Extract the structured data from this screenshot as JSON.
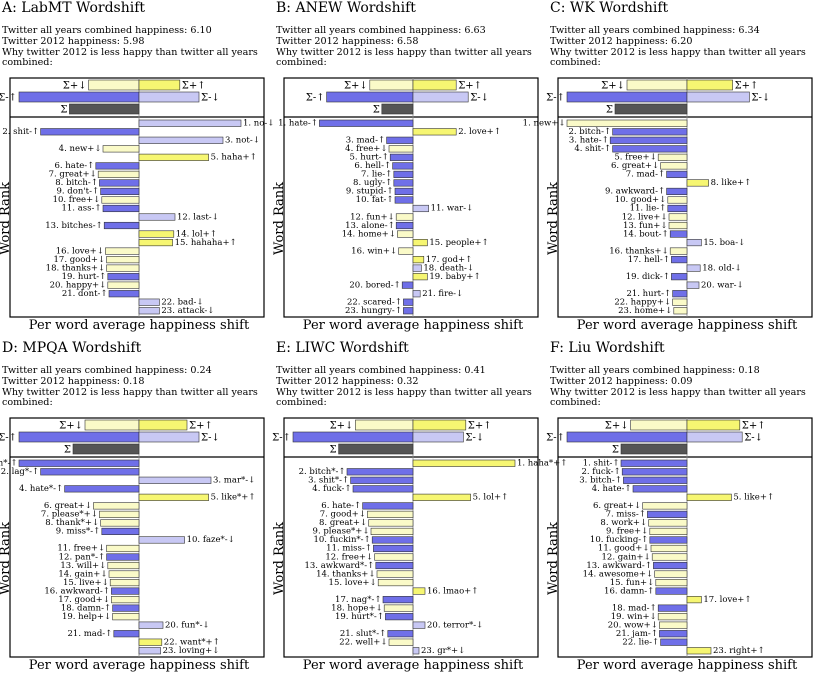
{
  "chart_data": [
    {
      "type": "bar",
      "panel_title": "A: LabMT Wordshift",
      "info": [
        "Twitter all years combined happiness: 6.10",
        "Twitter 2012 happiness: 5.98",
        "Why twitter 2012 is less happy than twitter all years combined:"
      ],
      "ylabel": "Word Rank",
      "xlabel": "Per word average happiness shift",
      "summary": {
        "labels": [
          "Σ+↓",
          "Σ+↑",
          "Σ-↑",
          "Σ-↓",
          "Σ"
        ],
        "values": {
          "pos_down": -0.42,
          "pos_up": 0.34,
          "neg_up": -1.0,
          "neg_down": 0.5,
          "total": -0.58
        }
      },
      "words": [
        {
          "label": "1. no-↓",
          "value": 0.85,
          "kind": "neg_down"
        },
        {
          "label": "2. shit-↑",
          "value": -0.82,
          "kind": "neg_up"
        },
        {
          "label": "3. not-↓",
          "value": 0.7,
          "kind": "neg_down"
        },
        {
          "label": "4. new+↓",
          "value": -0.3,
          "kind": "pos_down"
        },
        {
          "label": "5. haha+↑",
          "value": 0.58,
          "kind": "pos_up"
        },
        {
          "label": "6. hate-↑",
          "value": -0.36,
          "kind": "neg_up"
        },
        {
          "label": "7. great+↓",
          "value": -0.34,
          "kind": "pos_down"
        },
        {
          "label": "8. bitch-↑",
          "value": -0.33,
          "kind": "neg_up"
        },
        {
          "label": "9. don't-↑",
          "value": -0.32,
          "kind": "neg_up"
        },
        {
          "label": "10. free+↓",
          "value": -0.31,
          "kind": "pos_down"
        },
        {
          "label": "11. ass-↑",
          "value": -0.3,
          "kind": "neg_up"
        },
        {
          "label": "12. last-↓",
          "value": 0.3,
          "kind": "neg_down"
        },
        {
          "label": "13. bitches-↑",
          "value": -0.29,
          "kind": "neg_up"
        },
        {
          "label": "14. lol+↑",
          "value": 0.29,
          "kind": "pos_up"
        },
        {
          "label": "15. hahaha+↑",
          "value": 0.28,
          "kind": "pos_up"
        },
        {
          "label": "16. love+↓",
          "value": -0.28,
          "kind": "pos_down"
        },
        {
          "label": "17. good+↓",
          "value": -0.27,
          "kind": "pos_down"
        },
        {
          "label": "18. thanks+↓",
          "value": -0.27,
          "kind": "pos_down"
        },
        {
          "label": "19. hurt-↑",
          "value": -0.26,
          "kind": "neg_up"
        },
        {
          "label": "20. happy+↓",
          "value": -0.26,
          "kind": "pos_down"
        },
        {
          "label": "21. dont-↑",
          "value": -0.25,
          "kind": "neg_up"
        },
        {
          "label": "22. bad-↓",
          "value": 0.17,
          "kind": "neg_down"
        },
        {
          "label": "23. attack-↓",
          "value": 0.17,
          "kind": "neg_down"
        }
      ]
    },
    {
      "type": "bar",
      "panel_title": "B: ANEW Wordshift",
      "info": [
        "Twitter all years combined happiness: 6.63",
        "Twitter 2012 happiness: 6.58",
        "Why twitter 2012 is less happy than twitter all years combined:"
      ],
      "ylabel": "Word Rank",
      "xlabel": "Per word average happiness shift",
      "summary": {
        "labels": [
          "Σ+↓",
          "Σ+↑",
          "Σ-↑",
          "Σ-↓",
          "Σ"
        ],
        "values": {
          "pos_down": -0.36,
          "pos_up": 0.36,
          "neg_up": -0.72,
          "neg_down": 0.46,
          "total": -0.26
        }
      },
      "words": [
        {
          "label": "1. hate-↑",
          "value": -0.78,
          "kind": "neg_up"
        },
        {
          "label": "2. love+↑",
          "value": 0.36,
          "kind": "pos_up"
        },
        {
          "label": "3. mad-↑",
          "value": -0.22,
          "kind": "neg_up"
        },
        {
          "label": "4. free+↓",
          "value": -0.2,
          "kind": "pos_down"
        },
        {
          "label": "5. hurt-↑",
          "value": -0.19,
          "kind": "neg_up"
        },
        {
          "label": "6. hell-↑",
          "value": -0.17,
          "kind": "neg_up"
        },
        {
          "label": "7. lie-↑",
          "value": -0.16,
          "kind": "neg_up"
        },
        {
          "label": "8. ugly-↑",
          "value": -0.16,
          "kind": "neg_up"
        },
        {
          "label": "9. stupid-↑",
          "value": -0.15,
          "kind": "neg_up"
        },
        {
          "label": "10. fat-↑",
          "value": -0.15,
          "kind": "neg_up"
        },
        {
          "label": "11. war-↓",
          "value": 0.13,
          "kind": "neg_down"
        },
        {
          "label": "12. fun+↓",
          "value": -0.14,
          "kind": "pos_down"
        },
        {
          "label": "13. alone-↑",
          "value": -0.14,
          "kind": "neg_up"
        },
        {
          "label": "14. home+↓",
          "value": -0.13,
          "kind": "pos_down"
        },
        {
          "label": "15. people+↑",
          "value": 0.12,
          "kind": "pos_up"
        },
        {
          "label": "16. win+↓",
          "value": -0.12,
          "kind": "pos_down"
        },
        {
          "label": "17. god+↑",
          "value": 0.09,
          "kind": "pos_up"
        },
        {
          "label": "18. death-↓",
          "value": 0.07,
          "kind": "neg_down"
        },
        {
          "label": "19. baby+↑",
          "value": 0.12,
          "kind": "pos_up"
        },
        {
          "label": "20. bored-↑",
          "value": -0.09,
          "kind": "neg_up"
        },
        {
          "label": "21. fire-↓",
          "value": 0.06,
          "kind": "neg_down"
        },
        {
          "label": "22. scared-↑",
          "value": -0.08,
          "kind": "neg_up"
        },
        {
          "label": "23. hungry-↑",
          "value": -0.08,
          "kind": "neg_up"
        }
      ]
    },
    {
      "type": "bar",
      "panel_title": "C: WK Wordshift",
      "info": [
        "Twitter all years combined happiness: 6.34",
        "Twitter 2012 happiness: 6.20",
        "Why twitter 2012 is less happy than twitter all years combined:"
      ],
      "ylabel": "Word Rank",
      "xlabel": "Per word average happiness shift",
      "summary": {
        "labels": [
          "Σ+↓",
          "Σ+↑",
          "Σ-↑",
          "Σ-↓",
          "Σ"
        ],
        "values": {
          "pos_down": -0.5,
          "pos_up": 0.38,
          "neg_up": -1.0,
          "neg_down": 0.52,
          "total": -0.6
        }
      },
      "words": [
        {
          "label": "1. new+↓",
          "value": -1.0,
          "kind": "pos_down"
        },
        {
          "label": "2. bitch-↑",
          "value": -0.62,
          "kind": "neg_up"
        },
        {
          "label": "3. hate-↑",
          "value": -0.64,
          "kind": "neg_up"
        },
        {
          "label": "4. shit-↑",
          "value": -0.62,
          "kind": "neg_up"
        },
        {
          "label": "5. free+↓",
          "value": -0.24,
          "kind": "pos_down"
        },
        {
          "label": "6. great+↓",
          "value": -0.22,
          "kind": "pos_down"
        },
        {
          "label": "7. mad-↑",
          "value": -0.17,
          "kind": "neg_up"
        },
        {
          "label": "8. like+↑",
          "value": 0.18,
          "kind": "pos_up"
        },
        {
          "label": "9. awkward-↑",
          "value": -0.17,
          "kind": "neg_up"
        },
        {
          "label": "10. good+↓",
          "value": -0.16,
          "kind": "pos_down"
        },
        {
          "label": "11. lie-↑",
          "value": -0.16,
          "kind": "neg_up"
        },
        {
          "label": "12. live+↓",
          "value": -0.15,
          "kind": "pos_down"
        },
        {
          "label": "13. fun+↓",
          "value": -0.15,
          "kind": "pos_down"
        },
        {
          "label": "14. bout-↑",
          "value": -0.14,
          "kind": "neg_up"
        },
        {
          "label": "15. boa-↓",
          "value": 0.12,
          "kind": "neg_down"
        },
        {
          "label": "16. thanks+↓",
          "value": -0.14,
          "kind": "pos_down"
        },
        {
          "label": "17. hell-↑",
          "value": -0.13,
          "kind": "neg_up"
        },
        {
          "label": "18. old-↓",
          "value": 0.11,
          "kind": "neg_down"
        },
        {
          "label": "19. dick-↑",
          "value": -0.13,
          "kind": "neg_up"
        },
        {
          "label": "20. war-↓",
          "value": 0.1,
          "kind": "neg_down"
        },
        {
          "label": "21. hurt-↑",
          "value": -0.12,
          "kind": "neg_up"
        },
        {
          "label": "22. happy+↓",
          "value": -0.12,
          "kind": "pos_down"
        },
        {
          "label": "23. home+↓",
          "value": -0.11,
          "kind": "pos_down"
        }
      ]
    },
    {
      "type": "bar",
      "panel_title": "D: MPQA Wordshift",
      "info": [
        "Twitter all years combined happiness: 0.24",
        "Twitter 2012 happiness: 0.18",
        "Why twitter 2012 is less happy than twitter all years combined:"
      ],
      "ylabel": "Word Rank",
      "xlabel": "Per word average happiness shift",
      "summary": {
        "labels": [
          "Σ+↓",
          "Σ+↑",
          "Σ-↑",
          "Σ-↓",
          "Σ"
        ],
        "values": {
          "pos_down": -0.45,
          "pos_up": 0.4,
          "neg_up": -1.0,
          "neg_down": 0.5,
          "total": -0.55
        }
      },
      "words": [
        {
          "label": "1. bitch*-↑",
          "value": -1.0,
          "kind": "neg_up"
        },
        {
          "label": "2. lag*-↑",
          "value": -0.82,
          "kind": "neg_up"
        },
        {
          "label": "3. mar*-↓",
          "value": 0.6,
          "kind": "neg_down"
        },
        {
          "label": "4. hate*-↑",
          "value": -0.62,
          "kind": "neg_up"
        },
        {
          "label": "5. like*+↑",
          "value": 0.58,
          "kind": "pos_up"
        },
        {
          "label": "6. great+↓",
          "value": -0.38,
          "kind": "pos_down"
        },
        {
          "label": "7. please*+↓",
          "value": -0.33,
          "kind": "pos_down"
        },
        {
          "label": "8. thank*+↓",
          "value": -0.32,
          "kind": "pos_down"
        },
        {
          "label": "9. miss*-↑",
          "value": -0.31,
          "kind": "neg_up"
        },
        {
          "label": "10. faze*-↓",
          "value": 0.38,
          "kind": "neg_down"
        },
        {
          "label": "11. free+↓",
          "value": -0.27,
          "kind": "pos_down"
        },
        {
          "label": "12. pan*-↑",
          "value": -0.27,
          "kind": "neg_up"
        },
        {
          "label": "13. will+↓",
          "value": -0.26,
          "kind": "pos_down"
        },
        {
          "label": "14. gain+↓",
          "value": -0.25,
          "kind": "pos_down"
        },
        {
          "label": "15. live+↓",
          "value": -0.24,
          "kind": "pos_down"
        },
        {
          "label": "16. awkward-↑",
          "value": -0.23,
          "kind": "neg_up"
        },
        {
          "label": "17. good+↓",
          "value": -0.23,
          "kind": "pos_down"
        },
        {
          "label": "18. damn-↑",
          "value": -0.22,
          "kind": "neg_up"
        },
        {
          "label": "19. help+↓",
          "value": -0.22,
          "kind": "pos_down"
        },
        {
          "label": "20. fun*-↓",
          "value": 0.2,
          "kind": "neg_down"
        },
        {
          "label": "21. mad-↑",
          "value": -0.21,
          "kind": "neg_up"
        },
        {
          "label": "22. want*+↑",
          "value": 0.19,
          "kind": "pos_up"
        },
        {
          "label": "23. loving+↓",
          "value": 0.18,
          "kind": "neg_down"
        }
      ]
    },
    {
      "type": "bar",
      "panel_title": "E: LIWC Wordshift",
      "info": [
        "Twitter all years combined happiness: 0.41",
        "Twitter 2012 happiness: 0.32",
        "Why twitter 2012 is less happy than twitter all years combined:"
      ],
      "ylabel": "Word Rank",
      "xlabel": "Per word average happiness shift",
      "summary": {
        "labels": [
          "Σ+↓",
          "Σ+↑",
          "Σ-↑",
          "Σ-↓",
          "Σ"
        ],
        "values": {
          "pos_down": -0.48,
          "pos_up": 0.44,
          "neg_up": -1.0,
          "neg_down": 0.42,
          "total": -0.62
        }
      },
      "words": [
        {
          "label": "1. haha*+↑",
          "value": 0.85,
          "kind": "pos_up"
        },
        {
          "label": "2. bitch*-↑",
          "value": -0.55,
          "kind": "neg_up"
        },
        {
          "label": "3. shit*-↑",
          "value": -0.52,
          "kind": "neg_up"
        },
        {
          "label": "4. fuck-↑",
          "value": -0.5,
          "kind": "neg_up"
        },
        {
          "label": "5. lol+↑",
          "value": 0.48,
          "kind": "pos_up"
        },
        {
          "label": "6. hate-↑",
          "value": -0.42,
          "kind": "neg_up"
        },
        {
          "label": "7. good+↓",
          "value": -0.38,
          "kind": "pos_down"
        },
        {
          "label": "8. great+↓",
          "value": -0.37,
          "kind": "pos_down"
        },
        {
          "label": "9. please*+↓",
          "value": -0.35,
          "kind": "pos_down"
        },
        {
          "label": "10. fuckin*-↑",
          "value": -0.34,
          "kind": "neg_up"
        },
        {
          "label": "11. miss-↑",
          "value": -0.33,
          "kind": "neg_up"
        },
        {
          "label": "12. free+↓",
          "value": -0.32,
          "kind": "pos_down"
        },
        {
          "label": "13. awkward*-↑",
          "value": -0.31,
          "kind": "neg_up"
        },
        {
          "label": "14. thanks+↓",
          "value": -0.3,
          "kind": "pos_down"
        },
        {
          "label": "15. love+↓",
          "value": -0.29,
          "kind": "pos_down"
        },
        {
          "label": "16. lmao+↑",
          "value": 0.1,
          "kind": "pos_up"
        },
        {
          "label": "17. nag*-↑",
          "value": -0.25,
          "kind": "neg_up"
        },
        {
          "label": "18. hope+↓",
          "value": -0.24,
          "kind": "pos_down"
        },
        {
          "label": "19. hurt*-↑",
          "value": -0.23,
          "kind": "neg_up"
        },
        {
          "label": "20. terror*-↓",
          "value": 0.1,
          "kind": "neg_down"
        },
        {
          "label": "21. slut*-↑",
          "value": -0.21,
          "kind": "neg_up"
        },
        {
          "label": "22. well+↓",
          "value": -0.2,
          "kind": "pos_down"
        },
        {
          "label": "23. gr*+↓",
          "value": 0.05,
          "kind": "neg_down"
        }
      ]
    },
    {
      "type": "bar",
      "panel_title": "F: Liu Wordshift",
      "info": [
        "Twitter all years combined happiness: 0.18",
        "Twitter 2012 happiness: 0.09",
        "Why twitter 2012 is less happy than twitter all years combined:"
      ],
      "ylabel": "Word Rank",
      "xlabel": "Per word average happiness shift",
      "summary": {
        "labels": [
          "Σ+↓",
          "Σ+↑",
          "Σ-↑",
          "Σ-↓",
          "Σ"
        ],
        "values": {
          "pos_down": -0.47,
          "pos_up": 0.44,
          "neg_up": -1.0,
          "neg_down": 0.46,
          "total": -0.55
        }
      },
      "words": [
        {
          "label": "1. shit-↑",
          "value": -0.55,
          "kind": "neg_up"
        },
        {
          "label": "2. fuck-↑",
          "value": -0.54,
          "kind": "neg_up"
        },
        {
          "label": "3. bitch-↑",
          "value": -0.53,
          "kind": "neg_up"
        },
        {
          "label": "4. hate-↑",
          "value": -0.45,
          "kind": "neg_up"
        },
        {
          "label": "5. like+↑",
          "value": 0.37,
          "kind": "pos_up"
        },
        {
          "label": "6. great+↓",
          "value": -0.37,
          "kind": "pos_down"
        },
        {
          "label": "7. miss-↑",
          "value": -0.33,
          "kind": "neg_up"
        },
        {
          "label": "8. work+↓",
          "value": -0.32,
          "kind": "pos_down"
        },
        {
          "label": "9. free+↓",
          "value": -0.31,
          "kind": "pos_down"
        },
        {
          "label": "10. fucking-↑",
          "value": -0.31,
          "kind": "neg_up"
        },
        {
          "label": "11. good+↓",
          "value": -0.3,
          "kind": "pos_down"
        },
        {
          "label": "12. gain+↓",
          "value": -0.29,
          "kind": "pos_down"
        },
        {
          "label": "13. awkward-↑",
          "value": -0.28,
          "kind": "neg_up"
        },
        {
          "label": "14. awesome+↓",
          "value": -0.27,
          "kind": "pos_down"
        },
        {
          "label": "15. fun+↓",
          "value": -0.26,
          "kind": "pos_down"
        },
        {
          "label": "16. damn-↑",
          "value": -0.26,
          "kind": "neg_up"
        },
        {
          "label": "17. love+↑",
          "value": 0.12,
          "kind": "pos_up"
        },
        {
          "label": "18. mad-↑",
          "value": -0.24,
          "kind": "neg_up"
        },
        {
          "label": "19. win+↓",
          "value": -0.24,
          "kind": "pos_down"
        },
        {
          "label": "20. wow+↓",
          "value": -0.23,
          "kind": "pos_down"
        },
        {
          "label": "21. jam-↑",
          "value": -0.23,
          "kind": "neg_up"
        },
        {
          "label": "22. lie-↑",
          "value": -0.22,
          "kind": "neg_up"
        },
        {
          "label": "23. right+↑",
          "value": 0.2,
          "kind": "pos_up"
        }
      ]
    }
  ],
  "colors": {
    "neg_up": "#6f6fe8",
    "neg_down": "#c8c8f4",
    "pos_up": "#f6f672",
    "pos_down": "#fafac8",
    "total": "#555555",
    "frame": "#000000"
  }
}
